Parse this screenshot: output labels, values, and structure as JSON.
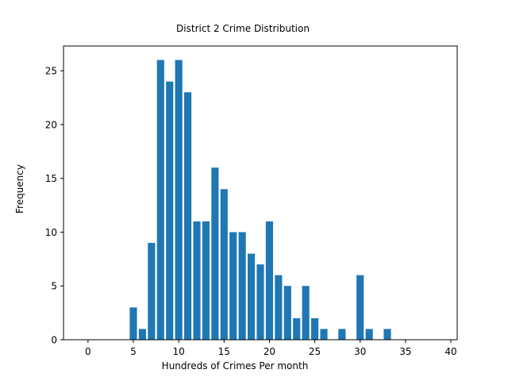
{
  "chart_data": {
    "type": "bar",
    "title": "District 2 Crime Distribution",
    "xlabel": "Hundreds of Crimes Per month",
    "ylabel": "Frequency",
    "xlim": [
      -2.7,
      40.7
    ],
    "ylim": [
      0,
      27.3
    ],
    "xticks": [
      0,
      5,
      10,
      15,
      20,
      25,
      30,
      35,
      40
    ],
    "yticks": [
      0,
      5,
      10,
      15,
      20,
      25
    ],
    "grid": false,
    "bar_color": "#1f77b4",
    "x": [
      5,
      6,
      7,
      8,
      9,
      10,
      11,
      12,
      13,
      14,
      15,
      16,
      17,
      18,
      19,
      20,
      21,
      22,
      23,
      24,
      25,
      26,
      28,
      30,
      31,
      33
    ],
    "values": [
      3,
      1,
      9,
      26,
      24,
      26,
      23,
      11,
      11,
      16,
      14,
      10,
      10,
      8,
      7,
      11,
      6,
      5,
      2,
      5,
      2,
      1,
      1,
      6,
      1,
      1
    ]
  }
}
